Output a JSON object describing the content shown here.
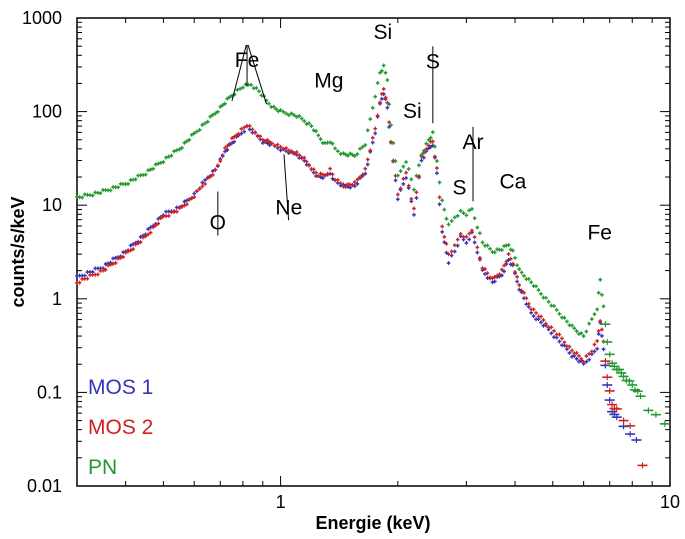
{
  "chart_data": {
    "type": "scatter",
    "xlabel": "Energie (keV)",
    "ylabel": "counts/s/keV",
    "xscale": "log",
    "yscale": "log",
    "xlim": [
      0.3,
      10
    ],
    "ylim": [
      0.01,
      1000
    ],
    "xticks": [
      {
        "value": 1,
        "label": "1"
      },
      {
        "value": 10,
        "label": "10"
      }
    ],
    "yticks": [
      {
        "value": 0.01,
        "label": "0.01"
      },
      {
        "value": 0.1,
        "label": "0.1"
      },
      {
        "value": 1,
        "label": "1"
      },
      {
        "value": 10,
        "label": "10"
      },
      {
        "value": 100,
        "label": "100"
      },
      {
        "value": 1000,
        "label": "1000"
      }
    ],
    "legend_position": "bottom-left",
    "series": [
      {
        "name": "MOS 1",
        "color": "#3333bb",
        "x": [
          0.3,
          0.35,
          0.4,
          0.45,
          0.5,
          0.55,
          0.6,
          0.65,
          0.68,
          0.7,
          0.72,
          0.75,
          0.78,
          0.82,
          0.86,
          0.9,
          0.95,
          1.0,
          1.05,
          1.1,
          1.15,
          1.2,
          1.25,
          1.3,
          1.34,
          1.38,
          1.45,
          1.55,
          1.65,
          1.75,
          1.8,
          1.84,
          1.88,
          1.92,
          2.0,
          2.1,
          2.2,
          2.3,
          2.4,
          2.46,
          2.52,
          2.6,
          2.7,
          2.8,
          2.9,
          3.0,
          3.1,
          3.2,
          3.3,
          3.5,
          3.7,
          3.85,
          3.95,
          4.1,
          4.4,
          4.8,
          5.2,
          5.6,
          6.0,
          6.3,
          6.5,
          6.62,
          6.75,
          6.9,
          7.1,
          7.3,
          7.6,
          7.9,
          8.2
        ],
        "y": [
          1.7,
          2.2,
          3.2,
          5.0,
          8.0,
          9.5,
          13,
          20,
          24,
          30,
          38,
          46,
          55,
          68,
          58,
          48,
          44,
          40,
          37,
          35,
          30,
          24,
          20,
          20,
          22,
          18,
          16,
          16,
          22,
          60,
          120,
          160,
          110,
          45,
          12,
          20,
          8,
          30,
          40,
          45,
          22,
          5,
          2.5,
          3.2,
          4.5,
          4.0,
          5.0,
          3.2,
          2.0,
          1.5,
          1.8,
          2.6,
          2.2,
          1.3,
          0.7,
          0.5,
          0.35,
          0.25,
          0.2,
          0.25,
          0.3,
          0.55,
          0.3,
          0.12,
          0.06,
          0.055,
          0.045,
          0.035,
          0.031
        ]
      },
      {
        "name": "MOS 2",
        "color": "#cc2222",
        "x": [
          0.3,
          0.35,
          0.4,
          0.45,
          0.5,
          0.55,
          0.6,
          0.65,
          0.68,
          0.7,
          0.72,
          0.75,
          0.78,
          0.82,
          0.86,
          0.9,
          0.95,
          1.0,
          1.05,
          1.1,
          1.15,
          1.2,
          1.25,
          1.3,
          1.34,
          1.38,
          1.45,
          1.55,
          1.65,
          1.75,
          1.8,
          1.84,
          1.88,
          1.92,
          2.0,
          2.1,
          2.2,
          2.3,
          2.4,
          2.46,
          2.52,
          2.6,
          2.7,
          2.8,
          2.9,
          3.0,
          3.1,
          3.2,
          3.3,
          3.5,
          3.7,
          3.85,
          3.95,
          4.1,
          4.4,
          4.8,
          5.2,
          5.6,
          6.0,
          6.3,
          6.5,
          6.62,
          6.75,
          6.9,
          7.1,
          7.3,
          7.6,
          7.9,
          8.5
        ],
        "y": [
          1.5,
          2.0,
          3.0,
          4.6,
          7.5,
          9.0,
          12.5,
          19,
          23,
          30,
          40,
          50,
          60,
          72,
          60,
          50,
          46,
          42,
          38,
          36,
          31,
          25,
          21,
          21,
          24,
          19,
          16,
          17,
          24,
          65,
          130,
          175,
          120,
          48,
          13,
          22,
          9,
          32,
          45,
          48,
          24,
          6,
          3.0,
          3.6,
          5.0,
          4.5,
          5.5,
          3.5,
          2.2,
          1.6,
          2.0,
          2.9,
          2.4,
          1.4,
          0.8,
          0.55,
          0.4,
          0.28,
          0.22,
          0.28,
          0.35,
          0.6,
          0.35,
          0.14,
          0.075,
          0.065,
          0.05,
          0.045,
          0.016
        ]
      },
      {
        "name": "PN",
        "color": "#22992e",
        "x": [
          0.3,
          0.35,
          0.4,
          0.45,
          0.5,
          0.55,
          0.6,
          0.65,
          0.7,
          0.75,
          0.8,
          0.84,
          0.88,
          0.92,
          0.96,
          1.0,
          1.05,
          1.1,
          1.15,
          1.2,
          1.25,
          1.3,
          1.34,
          1.38,
          1.45,
          1.55,
          1.65,
          1.75,
          1.8,
          1.84,
          1.88,
          1.92,
          2.0,
          2.1,
          2.2,
          2.3,
          2.4,
          2.46,
          2.52,
          2.6,
          2.7,
          2.8,
          2.9,
          3.0,
          3.1,
          3.2,
          3.3,
          3.5,
          3.7,
          3.85,
          3.95,
          4.1,
          4.4,
          4.8,
          5.2,
          5.6,
          6.0,
          6.3,
          6.5,
          6.62,
          6.75,
          6.9,
          7.1,
          7.3,
          7.6,
          8.0,
          8.4,
          8.8,
          9.2,
          9.7
        ],
        "y": [
          12,
          14,
          17,
          22,
          30,
          40,
          58,
          80,
          110,
          150,
          185,
          195,
          165,
          130,
          110,
          100,
          95,
          90,
          80,
          70,
          55,
          45,
          48,
          40,
          35,
          34,
          45,
          150,
          260,
          300,
          220,
          70,
          20,
          30,
          15,
          35,
          50,
          58,
          30,
          11,
          6,
          7.5,
          8.5,
          8.0,
          9.0,
          6.0,
          4.0,
          3.2,
          3.4,
          3.8,
          3.2,
          2.0,
          1.5,
          1.0,
          0.7,
          0.5,
          0.4,
          0.6,
          0.8,
          1.6,
          0.8,
          0.35,
          0.2,
          0.18,
          0.15,
          0.12,
          0.09,
          0.065,
          0.06,
          0.045
        ]
      }
    ],
    "annotations": [
      {
        "label": "Fe",
        "x": 0.82,
        "y": 300,
        "leaders": [
          [
            0.75,
            130
          ],
          [
            0.82,
            185
          ],
          [
            0.92,
            120
          ]
        ]
      },
      {
        "label": "O",
        "x": 0.69,
        "y": 5.5,
        "leaders": [
          [
            0.69,
            14
          ]
        ]
      },
      {
        "label": "Ne",
        "x": 1.05,
        "y": 8.0,
        "leaders": [
          [
            1.02,
            35
          ]
        ]
      },
      {
        "label": "Mg",
        "x": 1.33,
        "y": 180,
        "leaders": []
      },
      {
        "label": "Si",
        "x": 1.83,
        "y": 600,
        "leaders": []
      },
      {
        "label": "Si",
        "x": 2.18,
        "y": 85,
        "leaders": []
      },
      {
        "label": "S",
        "x": 2.46,
        "y": 290,
        "leaders": [
          [
            2.46,
            75
          ]
        ]
      },
      {
        "label": "Ar",
        "x": 3.12,
        "y": 40,
        "leaders": [
          [
            3.12,
            11
          ]
        ]
      },
      {
        "label": "S",
        "x": 2.88,
        "y": 13,
        "leaders": []
      },
      {
        "label": "Ca",
        "x": 3.95,
        "y": 15,
        "leaders": []
      },
      {
        "label": "Fe",
        "x": 6.6,
        "y": 4.3,
        "leaders": []
      }
    ]
  }
}
